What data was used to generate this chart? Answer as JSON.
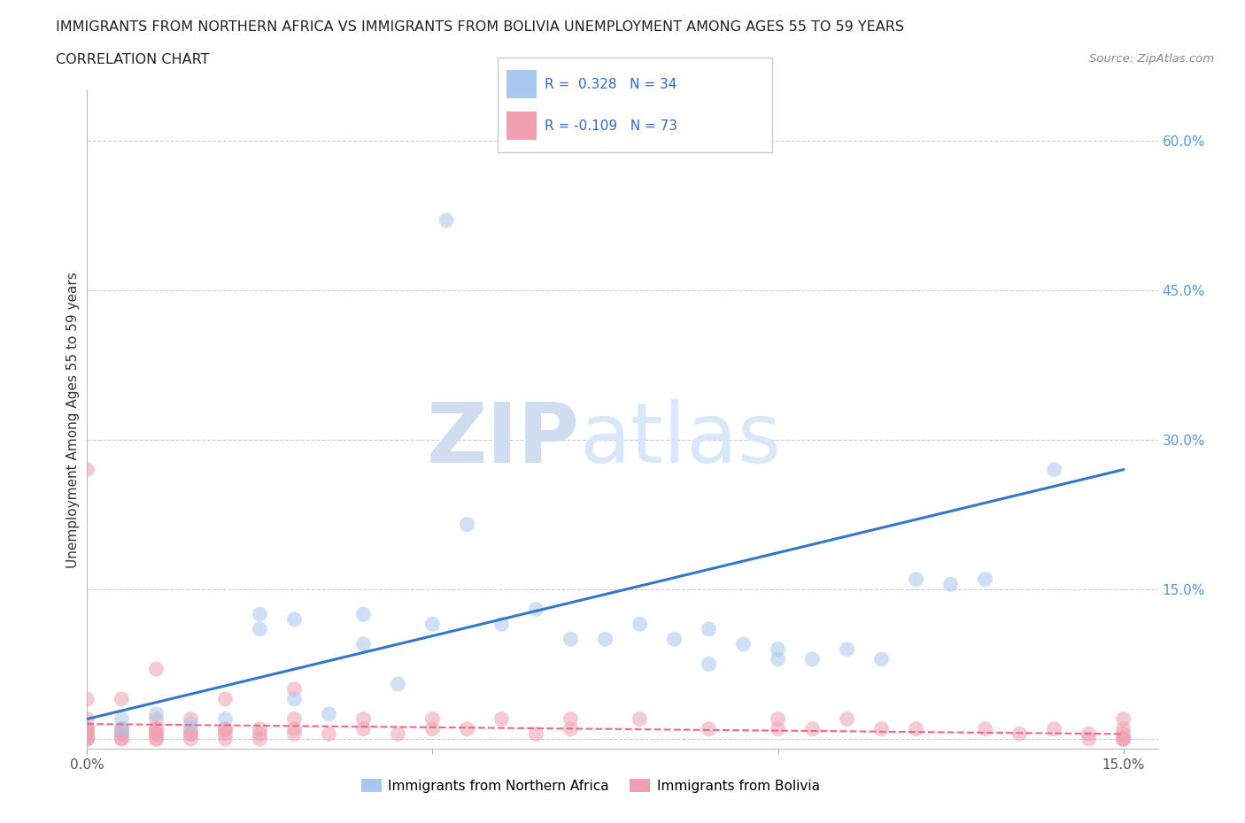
{
  "title_line1": "IMMIGRANTS FROM NORTHERN AFRICA VS IMMIGRANTS FROM BOLIVIA UNEMPLOYMENT AMONG AGES 55 TO 59 YEARS",
  "title_line2": "CORRELATION CHART",
  "source_text": "Source: ZipAtlas.com",
  "ylabel": "Unemployment Among Ages 55 to 59 years",
  "legend1_label": "Immigrants from Northern Africa",
  "legend2_label": "Immigrants from Bolivia",
  "R1": 0.328,
  "N1": 34,
  "R2": -0.109,
  "N2": 73,
  "color_blue": "#A8C8F0",
  "color_pink": "#F0A0B0",
  "color_blue_line": "#3377CC",
  "color_pink_line": "#EE6688",
  "xlim": [
    0.0,
    0.155
  ],
  "ylim": [
    -0.01,
    0.65
  ],
  "xtick_positions": [
    0.0,
    0.05,
    0.1,
    0.15
  ],
  "xticklabels": [
    "0.0%",
    "",
    "",
    "15.0%"
  ],
  "ytick_positions": [
    0.0,
    0.15,
    0.3,
    0.45,
    0.6
  ],
  "yticklabels": [
    "",
    "15.0%",
    "30.0%",
    "45.0%",
    "60.0%"
  ],
  "blue_x": [
    0.005,
    0.005,
    0.01,
    0.015,
    0.02,
    0.025,
    0.025,
    0.03,
    0.03,
    0.035,
    0.04,
    0.04,
    0.045,
    0.05,
    0.052,
    0.055,
    0.06,
    0.065,
    0.07,
    0.075,
    0.08,
    0.085,
    0.09,
    0.09,
    0.095,
    0.1,
    0.1,
    0.105,
    0.11,
    0.115,
    0.12,
    0.125,
    0.13,
    0.14
  ],
  "blue_y": [
    0.01,
    0.02,
    0.025,
    0.015,
    0.02,
    0.11,
    0.125,
    0.04,
    0.12,
    0.025,
    0.095,
    0.125,
    0.055,
    0.115,
    0.52,
    0.215,
    0.115,
    0.13,
    0.1,
    0.1,
    0.115,
    0.1,
    0.075,
    0.11,
    0.095,
    0.08,
    0.09,
    0.08,
    0.09,
    0.08,
    0.16,
    0.155,
    0.16,
    0.27
  ],
  "pink_x": [
    0.0,
    0.0,
    0.0,
    0.0,
    0.0,
    0.0,
    0.0,
    0.0,
    0.0,
    0.0,
    0.0,
    0.005,
    0.005,
    0.005,
    0.005,
    0.005,
    0.005,
    0.005,
    0.01,
    0.01,
    0.01,
    0.01,
    0.01,
    0.01,
    0.01,
    0.01,
    0.015,
    0.015,
    0.015,
    0.015,
    0.015,
    0.02,
    0.02,
    0.02,
    0.02,
    0.02,
    0.025,
    0.025,
    0.025,
    0.03,
    0.03,
    0.03,
    0.03,
    0.035,
    0.04,
    0.04,
    0.045,
    0.05,
    0.05,
    0.055,
    0.06,
    0.065,
    0.07,
    0.07,
    0.08,
    0.09,
    0.1,
    0.1,
    0.105,
    0.11,
    0.115,
    0.12,
    0.13,
    0.135,
    0.14,
    0.145,
    0.145,
    0.15,
    0.15,
    0.15,
    0.15,
    0.15,
    0.15
  ],
  "pink_y": [
    0.0,
    0.0,
    0.0,
    0.005,
    0.005,
    0.01,
    0.01,
    0.01,
    0.02,
    0.04,
    0.27,
    0.0,
    0.0,
    0.005,
    0.005,
    0.01,
    0.01,
    0.04,
    0.0,
    0.0,
    0.005,
    0.005,
    0.01,
    0.01,
    0.02,
    0.07,
    0.0,
    0.005,
    0.005,
    0.01,
    0.02,
    0.0,
    0.005,
    0.01,
    0.01,
    0.04,
    0.0,
    0.005,
    0.01,
    0.005,
    0.01,
    0.02,
    0.05,
    0.005,
    0.01,
    0.02,
    0.005,
    0.01,
    0.02,
    0.01,
    0.02,
    0.005,
    0.01,
    0.02,
    0.02,
    0.01,
    0.01,
    0.02,
    0.01,
    0.02,
    0.01,
    0.01,
    0.01,
    0.005,
    0.01,
    0.0,
    0.005,
    0.0,
    0.0,
    0.0,
    0.005,
    0.01,
    0.02
  ],
  "blue_line_x": [
    0.0,
    0.15
  ],
  "blue_line_y": [
    0.02,
    0.27
  ],
  "pink_line_x": [
    0.0,
    0.15
  ],
  "pink_line_y": [
    0.015,
    0.005
  ]
}
